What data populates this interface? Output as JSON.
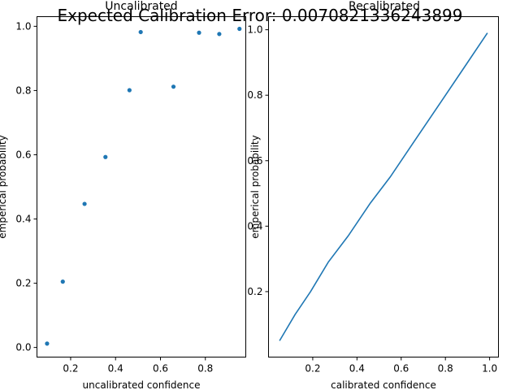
{
  "figure_title": "Expected Calibration Error: 0.0070821336243899",
  "series_color": "#1f77b4",
  "chart_data": [
    {
      "type": "scatter",
      "title": "Uncalibrated",
      "xlabel": "uncalibrated confidence",
      "ylabel": "emperical probability",
      "xlim": [
        0.05,
        0.98
      ],
      "ylim": [
        -0.03,
        1.03
      ],
      "xticks": [
        0.2,
        0.4,
        0.6,
        0.8
      ],
      "xtick_labels": [
        "0.2",
        "0.4",
        "0.6",
        "0.8"
      ],
      "yticks": [
        0.0,
        0.2,
        0.4,
        0.6,
        0.8,
        1.0
      ],
      "ytick_labels": [
        "0.0",
        "0.2",
        "0.4",
        "0.6",
        "0.8",
        "1.0"
      ],
      "x": [
        0.095,
        0.165,
        0.262,
        0.355,
        0.462,
        0.512,
        0.658,
        0.772,
        0.862,
        0.952
      ],
      "y": [
        0.012,
        0.205,
        0.447,
        0.593,
        0.801,
        0.982,
        0.812,
        0.98,
        0.976,
        0.992
      ]
    },
    {
      "type": "line",
      "title": "Recalibrated",
      "xlabel": "calibrated confidence",
      "ylabel": "emperical probability",
      "xlim": [
        0.0,
        1.04
      ],
      "ylim": [
        0.0,
        1.04
      ],
      "xticks": [
        0.2,
        0.4,
        0.6,
        0.8,
        1.0
      ],
      "xtick_labels": [
        "0.2",
        "0.4",
        "0.6",
        "0.8",
        "1.0"
      ],
      "yticks": [
        0.2,
        0.4,
        0.6,
        0.8,
        1.0
      ],
      "ytick_labels": [
        "0.2",
        "0.4",
        "0.6",
        "0.8",
        "1.0"
      ],
      "x": [
        0.05,
        0.12,
        0.19,
        0.27,
        0.36,
        0.46,
        0.55,
        0.65,
        0.78,
        0.88,
        0.99
      ],
      "y": [
        0.05,
        0.13,
        0.2,
        0.29,
        0.37,
        0.47,
        0.55,
        0.65,
        0.78,
        0.88,
        0.99
      ]
    }
  ]
}
